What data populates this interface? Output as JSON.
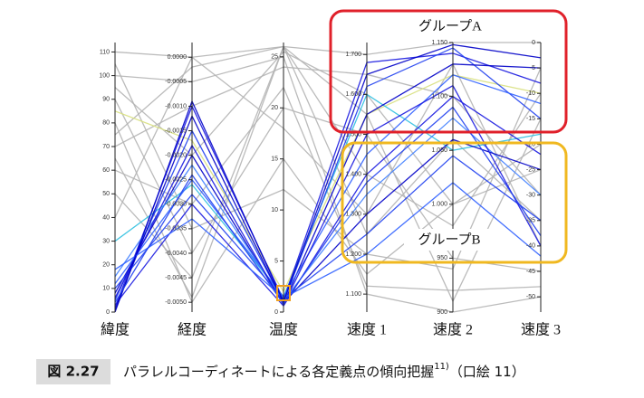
{
  "chart_data": {
    "type": "parallel",
    "axes": [
      {
        "label": "緯度",
        "ylim": [
          0,
          114
        ],
        "yticks": [
          0,
          10,
          20,
          30,
          40,
          50,
          60,
          70,
          80,
          90,
          100,
          110
        ]
      },
      {
        "label": "経度",
        "ylim": [
          -0.0052,
          0.0003
        ],
        "yticks": [
          {
            "value": 0,
            "label": "0.0000"
          },
          {
            "value": -0.0005,
            "label": "-0.0005"
          },
          {
            "value": -0.001,
            "label": "-0.0010"
          },
          {
            "value": -0.0015,
            "label": "-0.0015"
          },
          {
            "value": -0.002,
            "label": "-0.0020"
          },
          {
            "value": -0.0025,
            "label": "-0.0025"
          },
          {
            "value": -0.003,
            "label": "-0.0030"
          },
          {
            "value": -0.0035,
            "label": "-0.0035"
          },
          {
            "value": -0.004,
            "label": "-0.0040"
          },
          {
            "value": -0.0045,
            "label": "-0.0045"
          },
          {
            "value": -0.005,
            "label": "-0.0050"
          }
        ]
      },
      {
        "label": "温度",
        "ylim": [
          0,
          26.4
        ],
        "yticks": [
          0,
          5,
          10,
          15,
          20,
          25
        ]
      },
      {
        "label": "速度 1",
        "ylim": [
          1.055,
          1.73
        ],
        "yticks": [
          {
            "value": 1.1,
            "label": "1.100"
          },
          {
            "value": 1.2,
            "label": "1.200"
          },
          {
            "value": 1.3,
            "label": "1.300"
          },
          {
            "value": 1.4,
            "label": "1.400"
          },
          {
            "value": 1.5,
            "label": "1.500"
          },
          {
            "value": 1.6,
            "label": "1.600"
          },
          {
            "value": 1.7,
            "label": "1.700"
          }
        ]
      },
      {
        "label": "速度 2",
        "ylim": [
          900,
          1150
        ],
        "yticks": [
          900,
          950,
          {
            "value": 1000,
            "label": "1.000"
          },
          {
            "value": 1050,
            "label": "1.050"
          },
          {
            "value": 1100,
            "label": "1.100"
          },
          {
            "value": 1150,
            "label": "1.150"
          }
        ]
      },
      {
        "label": "速度 3",
        "ylim": [
          -53,
          0
        ],
        "yticks": [
          0,
          -5,
          -10,
          -15,
          -20,
          -25,
          -30,
          -35,
          -40,
          -45,
          -50
        ]
      }
    ],
    "series": [
      {
        "color": "#b4b4b4",
        "values": [
          110,
          0,
          26,
          1.7,
          1150,
          0
        ]
      },
      {
        "color": "#b4b4b4",
        "values": [
          100,
          -0.0005,
          25,
          1.1,
          900,
          -50
        ]
      },
      {
        "color": "#b4b4b4",
        "values": [
          90,
          -0.004,
          20,
          1.5,
          950,
          -45
        ]
      },
      {
        "color": "#b4b4b4",
        "values": [
          80,
          -0.005,
          15,
          1.15,
          1000,
          -20
        ]
      },
      {
        "color": "#b4b4b4",
        "values": [
          70,
          -0.001,
          24,
          1.65,
          1100,
          -30
        ]
      },
      {
        "color": "#b4b4b4",
        "values": [
          60,
          -0.003,
          22,
          1.12,
          920,
          -48
        ]
      },
      {
        "color": "#b4b4b4",
        "values": [
          50,
          -0.0045,
          26,
          1.4,
          980,
          -10
        ]
      },
      {
        "color": "#b4b4b4",
        "values": [
          40,
          0,
          18,
          1.3,
          1130,
          -40
        ]
      },
      {
        "color": "#b4b4b4",
        "values": [
          95,
          -0.002,
          25.5,
          1.6,
          1000,
          -25
        ]
      },
      {
        "color": "#b4b4b4",
        "values": [
          105,
          -0.0035,
          12,
          1.2,
          940,
          -5
        ]
      },
      {
        "color": "#b4b4b4",
        "values": [
          65,
          -0.0049,
          26,
          1.25,
          1060,
          -35
        ]
      },
      {
        "color": "#b4b4b4",
        "values": [
          75,
          -0.0002,
          26,
          1.55,
          910,
          -15
        ]
      },
      {
        "color": "#d8e080",
        "values": [
          85,
          -0.0017,
          2,
          1.55,
          1120,
          -10
        ]
      },
      {
        "color": "#30c0e0",
        "values": [
          30,
          -0.0026,
          1.5,
          1.6,
          1050,
          -18
        ]
      },
      {
        "color": "#1a1ae0",
        "values": [
          2,
          -0.001,
          1.2,
          1.68,
          1140,
          -8
        ]
      },
      {
        "color": "#2040f0",
        "values": [
          5,
          -0.0015,
          1,
          1.62,
          1145,
          -15
        ]
      },
      {
        "color": "#0000c8",
        "values": [
          8,
          -0.002,
          0.8,
          1.55,
          1130,
          -5
        ]
      },
      {
        "color": "#3060ff",
        "values": [
          12,
          -0.0025,
          1.5,
          1.45,
          1120,
          -12
        ]
      },
      {
        "color": "#1a1ae0",
        "values": [
          3,
          -0.003,
          0.6,
          1.4,
          1100,
          -22
        ]
      },
      {
        "color": "#4080ff",
        "values": [
          15,
          -0.0022,
          1.1,
          1.35,
          1080,
          -30
        ]
      },
      {
        "color": "#0000c8",
        "values": [
          1,
          -0.0012,
          0.9,
          1.3,
          1060,
          -25
        ]
      },
      {
        "color": "#2040f0",
        "values": [
          10,
          -0.0028,
          1.3,
          1.25,
          1045,
          -35
        ]
      },
      {
        "color": "#1a1ae0",
        "values": [
          6,
          -0.0018,
          0.7,
          1.5,
          1110,
          -40
        ]
      },
      {
        "color": "#3060ff",
        "values": [
          18,
          -0.0033,
          1.4,
          1.2,
          1020,
          -42
        ]
      },
      {
        "color": "#0000c8",
        "values": [
          0,
          -0.0009,
          1,
          1.65,
          1148,
          -3
        ]
      },
      {
        "color": "#2040f0",
        "values": [
          4,
          -0.0024,
          0.8,
          1.38,
          1090,
          -38
        ]
      }
    ],
    "annotations": [
      "グループA",
      "グループB"
    ]
  },
  "caption": {
    "label": "図 2.27",
    "text": "パラレルコーディネートによる各定義点の傾向把握",
    "superscript": "11)",
    "suffix": "（口絵 11）"
  }
}
